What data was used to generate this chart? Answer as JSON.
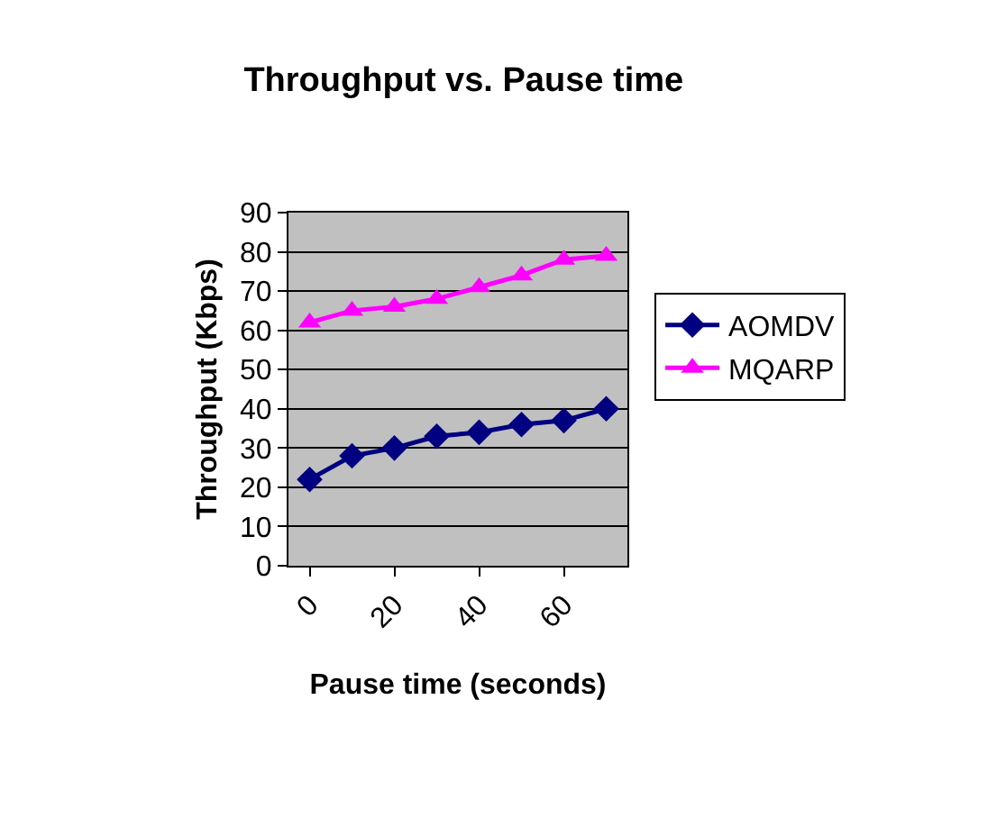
{
  "chart_data": {
    "type": "line",
    "title": "Throughput vs. Pause time",
    "xlabel": "Pause time (seconds)",
    "ylabel": "Throughput (Kbps)",
    "categories": [
      "0",
      null,
      "20",
      null,
      "40",
      null,
      "60",
      null
    ],
    "series": [
      {
        "name": "AOMDV",
        "color": "#000080",
        "values": [
          22,
          28,
          30,
          33,
          34,
          36,
          37,
          40
        ],
        "marker": "diamond"
      },
      {
        "name": "MQARP",
        "color": "#ff00ff",
        "values": [
          62,
          65,
          66,
          68,
          71,
          74,
          78,
          79
        ],
        "marker": "triangle"
      }
    ],
    "ylim": [
      0,
      90
    ],
    "yticks": [
      0,
      10,
      20,
      30,
      40,
      50,
      60,
      70,
      80,
      90
    ],
    "grid": "y",
    "legend": "right"
  }
}
